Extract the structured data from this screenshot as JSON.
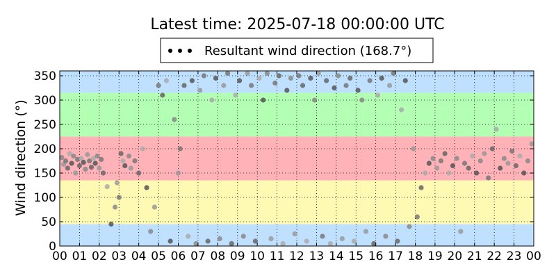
{
  "chart_data": {
    "type": "scatter",
    "title": "Latest time: 2025-07-18 00:00:00 UTC",
    "xlabel": "",
    "ylabel": "Wind direction (°)",
    "xlim": [
      0,
      24
    ],
    "ylim": [
      0,
      360
    ],
    "x_ticks": [
      "00",
      "01",
      "02",
      "03",
      "04",
      "05",
      "06",
      "07",
      "08",
      "09",
      "10",
      "11",
      "12",
      "13",
      "14",
      "15",
      "16",
      "17",
      "18",
      "19",
      "20",
      "21",
      "22",
      "23",
      "00"
    ],
    "y_ticks": [
      0,
      50,
      100,
      150,
      200,
      250,
      300,
      350
    ],
    "grid": true,
    "legend": {
      "placement": "top-center",
      "label": "Resultant wind direction (168.7°)"
    },
    "bands": [
      {
        "from": 0,
        "to": 45,
        "color": "#bfe0ff"
      },
      {
        "from": 45,
        "to": 135,
        "color": "#fffab3"
      },
      {
        "from": 135,
        "to": 225,
        "color": "#ffb3b8"
      },
      {
        "from": 225,
        "to": 315,
        "color": "#b3ffb3"
      },
      {
        "from": 315,
        "to": 360,
        "color": "#bfe0ff"
      }
    ],
    "series": [
      {
        "values": [
          [
            0.1,
            182
          ],
          [
            0.2,
            168
          ],
          [
            0.3,
            175
          ],
          [
            0.4,
            160
          ],
          [
            0.5,
            190
          ],
          [
            0.6,
            170
          ],
          [
            0.7,
            185
          ],
          [
            0.8,
            150
          ],
          [
            0.9,
            178
          ],
          [
            1.0,
            165
          ],
          [
            1.1,
            180
          ],
          [
            1.2,
            172
          ],
          [
            1.3,
            158
          ],
          [
            1.4,
            188
          ],
          [
            1.5,
            175
          ],
          [
            1.6,
            162
          ],
          [
            1.7,
            180
          ],
          [
            1.8,
            170
          ],
          [
            1.9,
            185
          ],
          [
            2.0,
            160
          ],
          [
            2.1,
            178
          ],
          [
            2.2,
            150
          ],
          [
            2.4,
            122
          ],
          [
            2.6,
            45
          ],
          [
            2.8,
            80
          ],
          [
            2.9,
            130
          ],
          [
            3.0,
            100
          ],
          [
            3.1,
            190
          ],
          [
            3.2,
            175
          ],
          [
            3.3,
            165
          ],
          [
            3.5,
            185
          ],
          [
            3.6,
            160
          ],
          [
            3.8,
            175
          ],
          [
            4.0,
            150
          ],
          [
            4.2,
            200
          ],
          [
            4.4,
            120
          ],
          [
            4.6,
            30
          ],
          [
            4.8,
            80
          ],
          [
            5.0,
            330
          ],
          [
            5.2,
            310
          ],
          [
            5.4,
            340
          ],
          [
            5.6,
            10
          ],
          [
            5.8,
            260
          ],
          [
            6.0,
            150
          ],
          [
            6.1,
            200
          ],
          [
            6.3,
            330
          ],
          [
            6.5,
            20
          ],
          [
            6.7,
            340
          ],
          [
            6.9,
            5
          ],
          [
            7.1,
            320
          ],
          [
            7.3,
            350
          ],
          [
            7.5,
            10
          ],
          [
            7.7,
            300
          ],
          [
            7.9,
            345
          ],
          [
            8.1,
            15
          ],
          [
            8.3,
            330
          ],
          [
            8.5,
            355
          ],
          [
            8.7,
            5
          ],
          [
            8.9,
            310
          ],
          [
            9.1,
            340
          ],
          [
            9.3,
            20
          ],
          [
            9.5,
            355
          ],
          [
            9.7,
            330
          ],
          [
            9.9,
            10
          ],
          [
            10.1,
            345
          ],
          [
            10.3,
            300
          ],
          [
            10.5,
            355
          ],
          [
            10.7,
            15
          ],
          [
            10.9,
            335
          ],
          [
            11.1,
            350
          ],
          [
            11.3,
            5
          ],
          [
            11.5,
            320
          ],
          [
            11.7,
            345
          ],
          [
            11.9,
            25
          ],
          [
            12.1,
            350
          ],
          [
            12.3,
            330
          ],
          [
            12.5,
            10
          ],
          [
            12.7,
            345
          ],
          [
            12.9,
            300
          ],
          [
            13.1,
            355
          ],
          [
            13.3,
            20
          ],
          [
            13.5,
            340
          ],
          [
            13.7,
            5
          ],
          [
            13.9,
            325
          ],
          [
            14.1,
            350
          ],
          [
            14.3,
            15
          ],
          [
            14.5,
            330
          ],
          [
            14.7,
            345
          ],
          [
            14.9,
            10
          ],
          [
            15.1,
            320
          ],
          [
            15.3,
            300
          ],
          [
            15.5,
            30
          ],
          [
            15.7,
            340
          ],
          [
            15.9,
            5
          ],
          [
            16.1,
            310
          ],
          [
            16.3,
            345
          ],
          [
            16.5,
            20
          ],
          [
            16.7,
            330
          ],
          [
            16.9,
            355
          ],
          [
            17.1,
            10
          ],
          [
            17.3,
            280
          ],
          [
            17.5,
            340
          ],
          [
            17.7,
            40
          ],
          [
            17.9,
            200
          ],
          [
            18.1,
            60
          ],
          [
            18.3,
            120
          ],
          [
            18.5,
            150
          ],
          [
            18.7,
            170
          ],
          [
            18.9,
            180
          ],
          [
            19.1,
            160
          ],
          [
            19.3,
            175
          ],
          [
            19.5,
            190
          ],
          [
            19.7,
            150
          ],
          [
            19.9,
            165
          ],
          [
            20.1,
            180
          ],
          [
            20.3,
            30
          ],
          [
            20.5,
            170
          ],
          [
            20.7,
            160
          ],
          [
            20.9,
            185
          ],
          [
            21.1,
            150
          ],
          [
            21.3,
            175
          ],
          [
            21.5,
            190
          ],
          [
            21.7,
            140
          ],
          [
            21.9,
            200
          ],
          [
            22.1,
            240
          ],
          [
            22.3,
            160
          ],
          [
            22.5,
            180
          ],
          [
            22.7,
            170
          ],
          [
            22.9,
            195
          ],
          [
            23.1,
            165
          ],
          [
            23.3,
            185
          ],
          [
            23.5,
            150
          ],
          [
            23.7,
            175
          ],
          [
            23.9,
            210
          ]
        ]
      }
    ]
  }
}
